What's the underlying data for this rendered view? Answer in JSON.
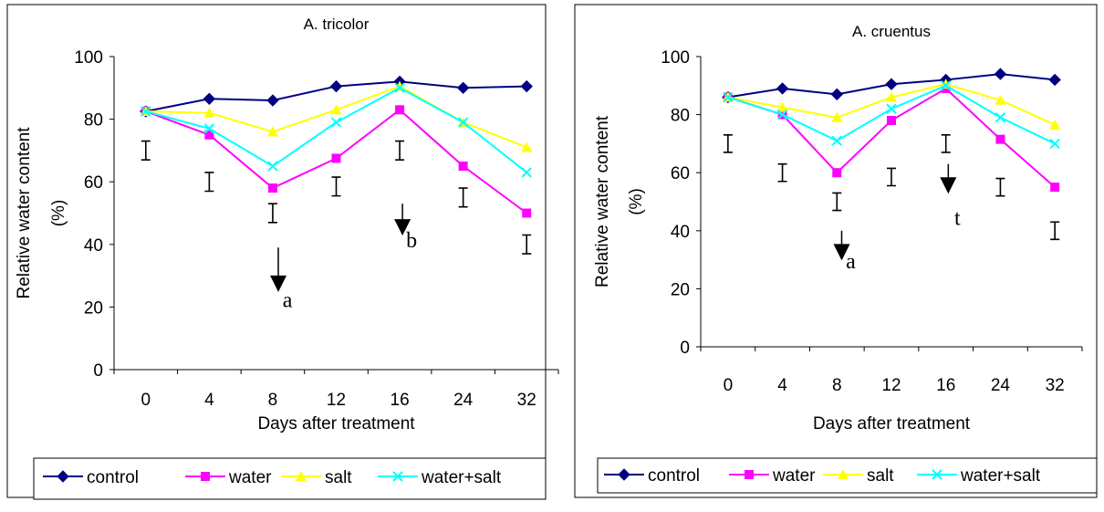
{
  "colors": {
    "control": "#000080",
    "water": "#FF00FF",
    "salt": "#FFFF00",
    "water_salt": "#00FFFF"
  },
  "chart_data": [
    {
      "type": "line",
      "title": "A. tricolor",
      "xlabel": "Days after treatment",
      "ylabel": "Relative water content",
      "ylabel_unit": "(%)",
      "categories": [
        "0",
        "4",
        "8",
        "12",
        "16",
        "24",
        "32"
      ],
      "ylim": [
        0,
        100
      ],
      "yticks": [
        0,
        20,
        40,
        60,
        80,
        100
      ],
      "grid": false,
      "legend_position": "bottom",
      "series": [
        {
          "name": "control",
          "marker": "diamond",
          "values": [
            82.5,
            86.5,
            86,
            90.5,
            92,
            90,
            90.5
          ]
        },
        {
          "name": "water",
          "marker": "square",
          "values": [
            82.5,
            75,
            58,
            67.5,
            83,
            65,
            50
          ]
        },
        {
          "name": "salt",
          "marker": "triangle",
          "values": [
            82.5,
            82,
            76,
            83,
            90.5,
            79,
            71
          ]
        },
        {
          "name": "water+salt",
          "marker": "x",
          "values": [
            82.5,
            77,
            65,
            79,
            90,
            79,
            63
          ]
        }
      ],
      "error_bars": [
        {
          "category": "0",
          "y": 70,
          "halfwidth": 3
        },
        {
          "category": "4",
          "y": 60,
          "halfwidth": 3
        },
        {
          "category": "8",
          "y": 50,
          "halfwidth": 3
        },
        {
          "category": "12",
          "y": 58.5,
          "halfwidth": 3
        },
        {
          "category": "16",
          "y": 70,
          "halfwidth": 3
        },
        {
          "category": "24",
          "y": 55,
          "halfwidth": 3
        },
        {
          "category": "32",
          "y": 40,
          "halfwidth": 3
        }
      ],
      "annotations": [
        {
          "text": "a",
          "position": 8.35,
          "arrow_top": 39,
          "arrow_bottom": 26,
          "label_y": 20
        },
        {
          "text": "b",
          "position": 16.35,
          "arrow_top": 53,
          "arrow_bottom": 44,
          "label_y": 39
        }
      ]
    },
    {
      "type": "line",
      "title": "A. cruentus",
      "xlabel": "Days after treatment",
      "ylabel": "Relative water content",
      "ylabel_unit": "(%)",
      "categories": [
        "0",
        "4",
        "8",
        "12",
        "16",
        "24",
        "32"
      ],
      "ylim": [
        0,
        100
      ],
      "yticks": [
        0,
        20,
        40,
        60,
        80,
        100
      ],
      "grid": false,
      "legend_position": "bottom",
      "series": [
        {
          "name": "control",
          "marker": "diamond",
          "values": [
            86,
            89,
            87,
            90.5,
            92,
            94,
            92
          ]
        },
        {
          "name": "water",
          "marker": "square",
          "values": [
            86,
            80,
            60,
            78,
            89,
            71.5,
            55
          ]
        },
        {
          "name": "salt",
          "marker": "triangle",
          "values": [
            86,
            82.5,
            79,
            86,
            90.5,
            85,
            76.5
          ]
        },
        {
          "name": "water+salt",
          "marker": "x",
          "values": [
            86,
            80,
            71,
            82,
            90,
            79,
            70
          ]
        }
      ],
      "error_bars": [
        {
          "category": "0",
          "y": 70,
          "halfwidth": 3
        },
        {
          "category": "4",
          "y": 60,
          "halfwidth": 3
        },
        {
          "category": "8",
          "y": 50,
          "halfwidth": 3
        },
        {
          "category": "12",
          "y": 58.5,
          "halfwidth": 3
        },
        {
          "category": "16",
          "y": 70,
          "halfwidth": 3
        },
        {
          "category": "24",
          "y": 55,
          "halfwidth": 3
        },
        {
          "category": "32",
          "y": 40,
          "halfwidth": 3
        }
      ],
      "annotations": [
        {
          "text": "a",
          "position": 8.35,
          "arrow_top": 40,
          "arrow_bottom": 31,
          "label_y": 27
        },
        {
          "text": "t",
          "position": 16.35,
          "arrow_top": 63,
          "arrow_bottom": 54,
          "label_y": 42
        }
      ]
    }
  ]
}
